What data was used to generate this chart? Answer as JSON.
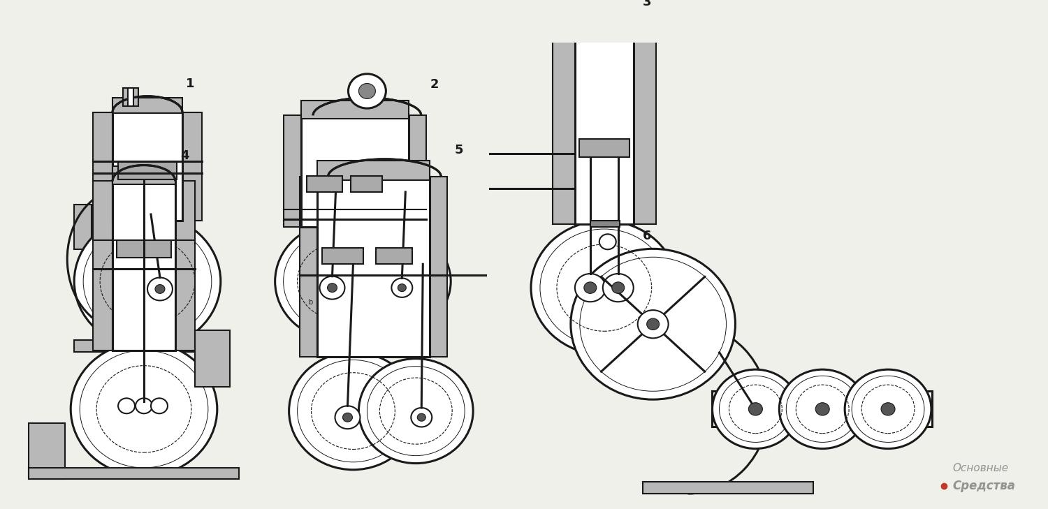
{
  "background_color": "#f0f0eb",
  "watermark_text_1": "Основные",
  "watermark_text_2": "Средства",
  "watermark_dot_color": "#c0392b",
  "watermark_color": "#888888",
  "fig_width": 15.0,
  "fig_height": 7.29,
  "dpi": 100,
  "line_color": "#1a1a1a",
  "fill_gray": "#b8b8b8",
  "fill_white": "#ffffff",
  "stroke_width": 1.5
}
